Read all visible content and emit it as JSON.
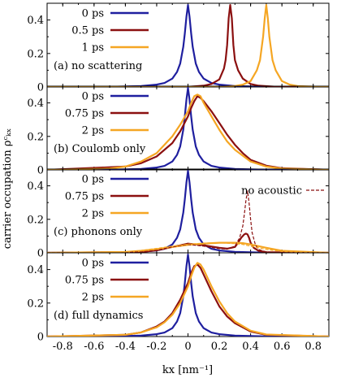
{
  "chart_data": [
    {
      "type": "line",
      "annotation": "(a) no scattering",
      "ylim": [
        0,
        0.5
      ],
      "yticks": [
        "0",
        "0.2",
        "0.4"
      ],
      "series": [
        {
          "name": "0 ps",
          "color": "#1f1f9f",
          "x": [
            -0.9,
            -0.5,
            -0.3,
            -0.2,
            -0.15,
            -0.1,
            -0.07,
            -0.05,
            -0.03,
            -0.02,
            -0.01,
            0,
            0.01,
            0.02,
            0.03,
            0.05,
            0.07,
            0.1,
            0.15,
            0.2,
            0.3,
            0.5,
            0.9
          ],
          "y": [
            0,
            0.001,
            0.006,
            0.014,
            0.024,
            0.05,
            0.09,
            0.14,
            0.24,
            0.32,
            0.42,
            0.49,
            0.42,
            0.32,
            0.24,
            0.14,
            0.09,
            0.05,
            0.024,
            0.014,
            0.006,
            0.001,
            0
          ]
        },
        {
          "name": "0.5 ps",
          "color": "#8b1010",
          "x": [
            -0.9,
            0,
            0.1,
            0.15,
            0.2,
            0.23,
            0.24,
            0.25,
            0.26,
            0.27,
            0.28,
            0.29,
            0.3,
            0.32,
            0.35,
            0.4,
            0.45,
            0.55,
            0.9
          ],
          "y": [
            0,
            0.001,
            0.008,
            0.018,
            0.045,
            0.11,
            0.16,
            0.25,
            0.41,
            0.49,
            0.41,
            0.25,
            0.16,
            0.1,
            0.05,
            0.018,
            0.008,
            0.002,
            0
          ]
        },
        {
          "name": "1 ps",
          "color": "#f5a623",
          "x": [
            -0.9,
            0.2,
            0.3,
            0.35,
            0.4,
            0.44,
            0.46,
            0.48,
            0.49,
            0.5,
            0.51,
            0.52,
            0.54,
            0.56,
            0.6,
            0.65,
            0.7,
            0.8,
            0.9
          ],
          "y": [
            0,
            0.001,
            0.006,
            0.014,
            0.035,
            0.1,
            0.16,
            0.3,
            0.41,
            0.49,
            0.41,
            0.3,
            0.16,
            0.1,
            0.035,
            0.014,
            0.006,
            0.002,
            0.001
          ]
        }
      ]
    },
    {
      "type": "line",
      "annotation": "(b) Coulomb only",
      "ylim": [
        0,
        0.5
      ],
      "yticks": [
        "0",
        "0.2",
        "0.4"
      ],
      "series": [
        {
          "name": "0 ps",
          "color": "#1f1f9f",
          "x": [
            -0.9,
            -0.5,
            -0.3,
            -0.2,
            -0.15,
            -0.1,
            -0.07,
            -0.05,
            -0.03,
            -0.02,
            -0.01,
            0,
            0.01,
            0.02,
            0.03,
            0.05,
            0.07,
            0.1,
            0.15,
            0.2,
            0.3,
            0.5,
            0.9
          ],
          "y": [
            0,
            0.001,
            0.006,
            0.014,
            0.024,
            0.05,
            0.09,
            0.14,
            0.24,
            0.32,
            0.42,
            0.49,
            0.42,
            0.32,
            0.24,
            0.14,
            0.09,
            0.05,
            0.024,
            0.014,
            0.006,
            0.001,
            0
          ]
        },
        {
          "name": "0.75 ps",
          "color": "#8b1010",
          "x": [
            -0.9,
            -0.4,
            -0.3,
            -0.2,
            -0.1,
            -0.05,
            0,
            0.02,
            0.04,
            0.06,
            0.08,
            0.1,
            0.15,
            0.2,
            0.25,
            0.3,
            0.35,
            0.4,
            0.5,
            0.6,
            0.9
          ],
          "y": [
            0,
            0.02,
            0.04,
            0.08,
            0.16,
            0.23,
            0.32,
            0.37,
            0.41,
            0.44,
            0.43,
            0.41,
            0.35,
            0.28,
            0.21,
            0.15,
            0.1,
            0.06,
            0.025,
            0.01,
            0.001
          ]
        },
        {
          "name": "2 ps",
          "color": "#f5a623",
          "x": [
            -0.9,
            -0.5,
            -0.4,
            -0.3,
            -0.2,
            -0.1,
            -0.05,
            0,
            0.02,
            0.04,
            0.06,
            0.08,
            0.1,
            0.15,
            0.2,
            0.25,
            0.3,
            0.4,
            0.5,
            0.6,
            0.9
          ],
          "y": [
            0,
            0.008,
            0.02,
            0.05,
            0.1,
            0.2,
            0.27,
            0.35,
            0.4,
            0.44,
            0.45,
            0.44,
            0.4,
            0.32,
            0.24,
            0.17,
            0.12,
            0.05,
            0.02,
            0.008,
            0.001
          ]
        }
      ]
    },
    {
      "type": "line",
      "annotation": "(c) phonons only",
      "ylim": [
        0,
        0.5
      ],
      "yticks": [
        "0",
        "0.2",
        "0.4"
      ],
      "legend_extra": "no acoustic",
      "series": [
        {
          "name": "0 ps",
          "color": "#1f1f9f",
          "x": [
            -0.9,
            -0.5,
            -0.3,
            -0.2,
            -0.15,
            -0.1,
            -0.07,
            -0.05,
            -0.03,
            -0.02,
            -0.01,
            0,
            0.01,
            0.02,
            0.03,
            0.05,
            0.07,
            0.1,
            0.15,
            0.2,
            0.3,
            0.5,
            0.9
          ],
          "y": [
            0,
            0.001,
            0.006,
            0.014,
            0.024,
            0.05,
            0.09,
            0.14,
            0.24,
            0.32,
            0.42,
            0.49,
            0.42,
            0.32,
            0.24,
            0.14,
            0.09,
            0.05,
            0.024,
            0.014,
            0.006,
            0.001,
            0
          ]
        },
        {
          "name": "0.75 ps",
          "color": "#8b1010",
          "x": [
            -0.9,
            -0.3,
            -0.2,
            -0.1,
            0,
            0.1,
            0.2,
            0.25,
            0.3,
            0.32,
            0.34,
            0.36,
            0.37,
            0.38,
            0.39,
            0.4,
            0.42,
            0.45,
            0.5,
            0.9
          ],
          "y": [
            0,
            0.005,
            0.015,
            0.035,
            0.055,
            0.045,
            0.03,
            0.025,
            0.035,
            0.06,
            0.09,
            0.11,
            0.115,
            0.11,
            0.09,
            0.06,
            0.03,
            0.012,
            0.004,
            0
          ]
        },
        {
          "name": "2 ps",
          "color": "#f5a623",
          "x": [
            -0.9,
            -0.4,
            -0.3,
            -0.2,
            -0.1,
            0,
            0.1,
            0.2,
            0.3,
            0.35,
            0.4,
            0.45,
            0.5,
            0.6,
            0.9
          ],
          "y": [
            0,
            0.005,
            0.012,
            0.022,
            0.035,
            0.048,
            0.055,
            0.06,
            0.06,
            0.058,
            0.05,
            0.04,
            0.03,
            0.012,
            0
          ]
        },
        {
          "name": "0.75 ps (no acoustic)",
          "color": "#8b1010",
          "dashed": true,
          "x": [
            -0.9,
            -0.3,
            -0.2,
            -0.1,
            0,
            0.1,
            0.2,
            0.25,
            0.3,
            0.33,
            0.35,
            0.36,
            0.37,
            0.38,
            0.39,
            0.4,
            0.41,
            0.43,
            0.45,
            0.5,
            0.9
          ],
          "y": [
            0,
            0.005,
            0.015,
            0.035,
            0.05,
            0.04,
            0.025,
            0.022,
            0.04,
            0.09,
            0.16,
            0.23,
            0.31,
            0.37,
            0.3,
            0.2,
            0.12,
            0.05,
            0.02,
            0.005,
            0
          ]
        },
        {
          "name": "2 ps (no acoustic)",
          "color": "#f5a623",
          "dashed": true,
          "x": [
            -0.9,
            -0.4,
            -0.3,
            -0.2,
            -0.1,
            0,
            0.1,
            0.2,
            0.3,
            0.35,
            0.4,
            0.45,
            0.5,
            0.6,
            0.9
          ],
          "y": [
            0,
            0.006,
            0.014,
            0.026,
            0.04,
            0.052,
            0.058,
            0.06,
            0.055,
            0.05,
            0.04,
            0.03,
            0.02,
            0.008,
            0
          ]
        }
      ]
    },
    {
      "type": "line",
      "annotation": "(d) full dynamics",
      "ylim": [
        0,
        0.5
      ],
      "yticks": [
        "0",
        "0.2",
        "0.4"
      ],
      "series": [
        {
          "name": "0 ps",
          "color": "#1f1f9f",
          "x": [
            -0.9,
            -0.5,
            -0.3,
            -0.2,
            -0.15,
            -0.1,
            -0.07,
            -0.05,
            -0.03,
            -0.02,
            -0.01,
            0,
            0.01,
            0.02,
            0.03,
            0.05,
            0.07,
            0.1,
            0.15,
            0.2,
            0.3,
            0.5,
            0.9
          ],
          "y": [
            0,
            0.001,
            0.006,
            0.014,
            0.024,
            0.05,
            0.09,
            0.14,
            0.24,
            0.32,
            0.42,
            0.49,
            0.42,
            0.32,
            0.24,
            0.14,
            0.09,
            0.05,
            0.024,
            0.014,
            0.006,
            0.001,
            0
          ]
        },
        {
          "name": "0.75 ps",
          "color": "#8b1010",
          "x": [
            -0.9,
            -0.4,
            -0.3,
            -0.2,
            -0.15,
            -0.1,
            -0.05,
            0,
            0.02,
            0.04,
            0.06,
            0.08,
            0.1,
            0.15,
            0.2,
            0.25,
            0.3,
            0.4,
            0.5,
            0.9
          ],
          "y": [
            0,
            0.01,
            0.025,
            0.06,
            0.09,
            0.14,
            0.22,
            0.32,
            0.38,
            0.42,
            0.43,
            0.41,
            0.37,
            0.27,
            0.18,
            0.12,
            0.08,
            0.03,
            0.01,
            0
          ]
        },
        {
          "name": "2 ps",
          "color": "#f5a623",
          "x": [
            -0.9,
            -0.4,
            -0.3,
            -0.2,
            -0.15,
            -0.1,
            -0.05,
            0,
            0.02,
            0.04,
            0.06,
            0.08,
            0.1,
            0.15,
            0.2,
            0.25,
            0.3,
            0.4,
            0.5,
            0.9
          ],
          "y": [
            0,
            0.01,
            0.025,
            0.055,
            0.085,
            0.13,
            0.2,
            0.3,
            0.36,
            0.41,
            0.44,
            0.43,
            0.4,
            0.3,
            0.21,
            0.14,
            0.09,
            0.035,
            0.012,
            0
          ]
        }
      ]
    }
  ],
  "x_axis": {
    "label": "kx [nm⁻¹]",
    "range": [
      -0.9,
      0.9
    ],
    "ticks": [
      -0.8,
      -0.6,
      -0.4,
      -0.2,
      0,
      0.2,
      0.4,
      0.6,
      0.8
    ],
    "tick_labels": [
      "-0.8",
      "-0.6",
      "-0.4",
      "-0.2",
      "0",
      "0.2",
      "0.4",
      "0.6",
      "0.8"
    ]
  },
  "y_axis": {
    "label": "carrier occupation ρᶜₖₓ"
  }
}
